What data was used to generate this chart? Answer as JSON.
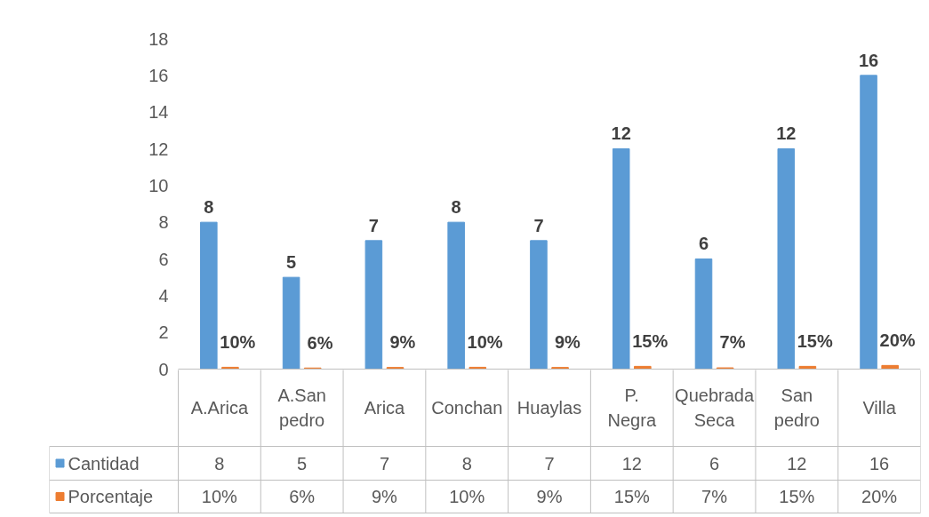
{
  "chart_data": {
    "type": "bar",
    "categories": [
      "A.Arica",
      "A.San pedro",
      "Arica",
      "Conchan",
      "Huaylas",
      "P. Negra",
      "Quebrada Seca",
      "San pedro",
      "Villa"
    ],
    "series": [
      {
        "name": "Cantidad",
        "color": "#5b9bd5",
        "values": [
          8,
          5,
          7,
          8,
          7,
          12,
          6,
          12,
          16
        ],
        "value_labels": [
          "8",
          "5",
          "7",
          "8",
          "7",
          "12",
          "6",
          "12",
          "16"
        ]
      },
      {
        "name": "Porcentaje",
        "color": "#ed7d31",
        "values": [
          0.1,
          0.06,
          0.09,
          0.1,
          0.09,
          0.15,
          0.07,
          0.15,
          0.2
        ],
        "value_labels": [
          "10%",
          "6%",
          "9%",
          "10%",
          "9%",
          "15%",
          "7%",
          "15%",
          "20%"
        ]
      }
    ],
    "ylim": [
      0,
      18
    ],
    "yticks": [
      0,
      2,
      4,
      6,
      8,
      10,
      12,
      14,
      16,
      18
    ],
    "grid": false,
    "legend": "bottom"
  }
}
